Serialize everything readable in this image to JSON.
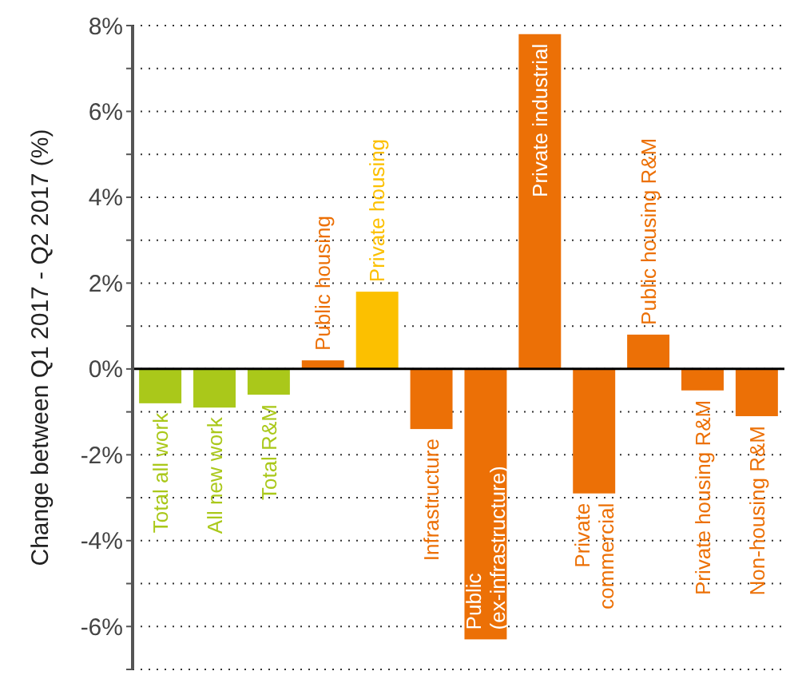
{
  "chart_data": {
    "type": "bar",
    "ylabel": "Change between Q1 2017 - Q2 2017 (%)",
    "categories": [
      "Total all work",
      "All new work",
      "Total R&M",
      "Public housing",
      "Private housing",
      "Infrastructure",
      "Public (ex-infrastructure)",
      "Private industrial",
      "Private commercial",
      "Public housing R&M",
      "Private housing R&M",
      "Non-housing R&M"
    ],
    "values": [
      -0.8,
      -0.9,
      -0.6,
      0.2,
      1.8,
      -1.4,
      -6.3,
      7.8,
      -2.9,
      0.8,
      -0.5,
      -1.1
    ],
    "colors": [
      "#aac81a",
      "#aac81a",
      "#aac81a",
      "#ec7006",
      "#fcc000",
      "#ec7006",
      "#ec7006",
      "#ec7006",
      "#ec7006",
      "#ec7006",
      "#ec7006",
      "#ec7006"
    ],
    "ylim": [
      -7,
      8
    ],
    "yticks": [
      {
        "value": -7,
        "label": null
      },
      {
        "value": -6,
        "label": "-6%"
      },
      {
        "value": -5,
        "label": null
      },
      {
        "value": -4,
        "label": "-4%"
      },
      {
        "value": -3,
        "label": null
      },
      {
        "value": -2,
        "label": "-2%"
      },
      {
        "value": -1,
        "label": null
      },
      {
        "value": 0,
        "label": "0%"
      },
      {
        "value": 1,
        "label": null
      },
      {
        "value": 2,
        "label": "2%"
      },
      {
        "value": 3,
        "label": null
      },
      {
        "value": 4,
        "label": "4%"
      },
      {
        "value": 5,
        "label": null
      },
      {
        "value": 6,
        "label": "6%"
      },
      {
        "value": 7,
        "label": null
      },
      {
        "value": 8,
        "label": "8%"
      }
    ],
    "grid": true
  }
}
